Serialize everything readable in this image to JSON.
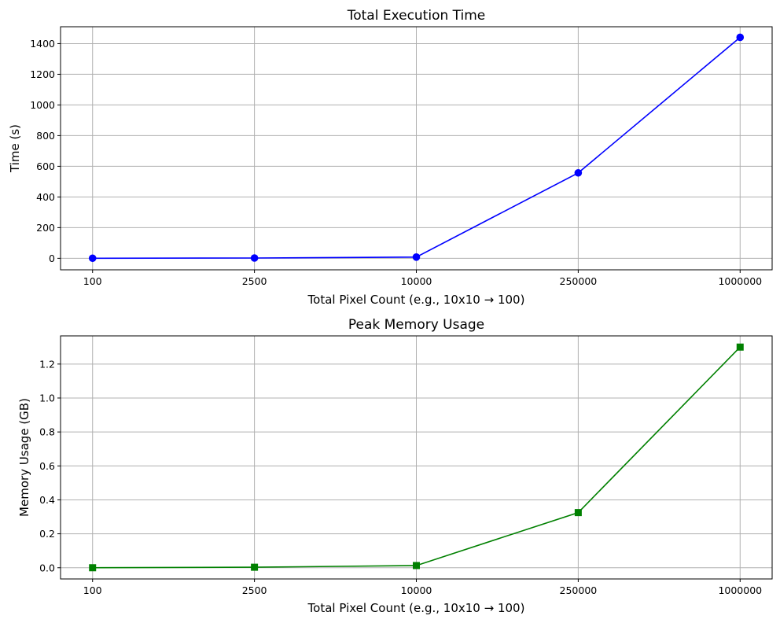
{
  "chart_data": [
    {
      "type": "line",
      "title": "Total Execution Time",
      "xlabel": "Total Pixel Count (e.g., 10x10 → 100)",
      "ylabel": "Time (s)",
      "categories": [
        "100",
        "2500",
        "10000",
        "250000",
        "1000000"
      ],
      "series": [
        {
          "values": [
            0.5,
            2,
            8,
            557,
            1441
          ],
          "color": "#0000ff",
          "marker": "circle"
        }
      ],
      "ylim": [
        -75,
        1510
      ],
      "yticks": [
        0,
        200,
        400,
        600,
        800,
        1000,
        1200,
        1400
      ],
      "ytick_labels": [
        "0",
        "200",
        "400",
        "600",
        "800",
        "1000",
        "1200",
        "1400"
      ],
      "grid": true
    },
    {
      "type": "line",
      "title": "Peak Memory Usage",
      "xlabel": "Total Pixel Count (e.g., 10x10 → 100)",
      "ylabel": "Memory Usage (GB)",
      "categories": [
        "100",
        "2500",
        "10000",
        "250000",
        "1000000"
      ],
      "series": [
        {
          "values": [
            0.0,
            0.003,
            0.013,
            0.325,
            1.3
          ],
          "color": "#008000",
          "marker": "square"
        }
      ],
      "ylim": [
        -0.066,
        1.366
      ],
      "yticks": [
        0.0,
        0.2,
        0.4,
        0.6,
        0.8,
        1.0,
        1.2
      ],
      "ytick_labels": [
        "0.0",
        "0.2",
        "0.4",
        "0.6",
        "0.8",
        "1.0",
        "1.2"
      ],
      "grid": true
    }
  ]
}
